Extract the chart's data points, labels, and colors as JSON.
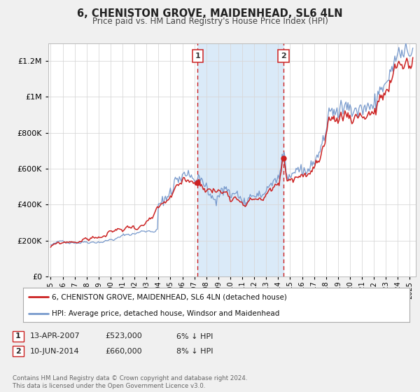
{
  "title": "6, CHENISTON GROVE, MAIDENHEAD, SL6 4LN",
  "subtitle": "Price paid vs. HM Land Registry's House Price Index (HPI)",
  "background_color": "#f0f0f0",
  "plot_bg_color": "#ffffff",
  "hpi_color": "#7799cc",
  "price_color": "#cc2222",
  "marker_color": "#cc2222",
  "shaded_region": [
    2007.28,
    2014.44
  ],
  "shaded_color": "#daeaf8",
  "vline_color": "#cc2222",
  "marker1_x": 2007.28,
  "marker1_y": 523000,
  "marker2_x": 2014.44,
  "marker2_y": 660000,
  "legend_price_label": "6, CHENISTON GROVE, MAIDENHEAD, SL6 4LN (detached house)",
  "legend_hpi_label": "HPI: Average price, detached house, Windsor and Maidenhead",
  "table_row1": [
    "1",
    "13-APR-2007",
    "£523,000",
    "6% ↓ HPI"
  ],
  "table_row2": [
    "2",
    "10-JUN-2014",
    "£660,000",
    "8% ↓ HPI"
  ],
  "footer": "Contains HM Land Registry data © Crown copyright and database right 2024.\nThis data is licensed under the Open Government Licence v3.0.",
  "ylim": [
    0,
    1300000
  ],
  "yticks": [
    0,
    200000,
    400000,
    600000,
    800000,
    1000000,
    1200000
  ],
  "ytick_labels": [
    "£0",
    "£200K",
    "£400K",
    "£600K",
    "£800K",
    "£1M",
    "£1.2M"
  ],
  "xmin": 1994.8,
  "xmax": 2025.5
}
